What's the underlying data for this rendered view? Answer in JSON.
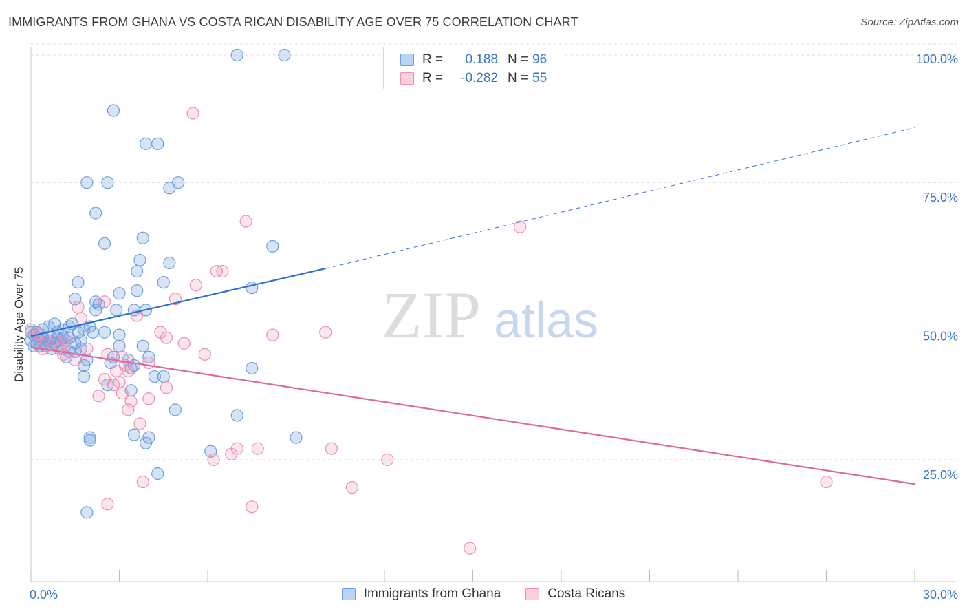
{
  "title": "IMMIGRANTS FROM GHANA VS COSTA RICAN DISABILITY AGE OVER 75 CORRELATION CHART",
  "source": "Source: ZipAtlas.com",
  "watermark": {
    "zip": "ZIP",
    "atlas": "atlas"
  },
  "legend": {
    "r_label": "R =",
    "n_label": "N =",
    "rows": [
      {
        "r": "0.188",
        "n": "96",
        "color": "#6c9fe0"
      },
      {
        "r": "-0.282",
        "n": "55",
        "color": "#f08cb0"
      }
    ]
  },
  "bottom_legend": [
    "Immigrants from Ghana",
    "Costa Ricans"
  ],
  "chart_data": {
    "type": "scatter",
    "xlabel": "",
    "ylabel": "Disability Age Over 75",
    "xlim": [
      0,
      30
    ],
    "ylim": [
      0,
      100
    ],
    "x_tick_labels": [
      "0.0%",
      "30.0%"
    ],
    "y_tick_labels": [
      {
        "value": 100,
        "label": "100.0%"
      },
      {
        "value": 75,
        "label": "75.0%"
      },
      {
        "value": 50,
        "label": "50.0%"
      },
      {
        "value": 25,
        "label": "25.0%"
      }
    ],
    "grid": true,
    "series": [
      {
        "name": "Immigrants from Ghana",
        "color": "#6c9fe0",
        "trend": {
          "x0": 0,
          "y0": 47.3,
          "x1": 10,
          "y1": 59.5,
          "x_dash_end": 30,
          "y_dash_end": 84.9
        },
        "points": [
          [
            7.0,
            98.0
          ],
          [
            8.6,
            98.0
          ],
          [
            2.8,
            88.0
          ],
          [
            3.9,
            82.0
          ],
          [
            4.3,
            82.0
          ],
          [
            1.9,
            75.0
          ],
          [
            2.6,
            75.0
          ],
          [
            5.0,
            75.0
          ],
          [
            4.7,
            74.0
          ],
          [
            2.2,
            69.5
          ],
          [
            2.5,
            64.0
          ],
          [
            3.8,
            65.0
          ],
          [
            8.2,
            63.5
          ],
          [
            3.7,
            61.0
          ],
          [
            4.7,
            60.5
          ],
          [
            3.6,
            59.0
          ],
          [
            1.6,
            57.0
          ],
          [
            4.5,
            57.0
          ],
          [
            7.5,
            56.0
          ],
          [
            3.6,
            55.5
          ],
          [
            3.0,
            55.0
          ],
          [
            2.2,
            53.5
          ],
          [
            1.5,
            54.0
          ],
          [
            2.3,
            53.0
          ],
          [
            2.2,
            52.0
          ],
          [
            3.5,
            52.0
          ],
          [
            2.9,
            52.0
          ],
          [
            3.9,
            52.0
          ],
          [
            2.0,
            49.0
          ],
          [
            0.0,
            48.0
          ],
          [
            0.1,
            47.5
          ],
          [
            0.2,
            48.0
          ],
          [
            0.4,
            48.5
          ],
          [
            0.6,
            49.0
          ],
          [
            0.8,
            49.5
          ],
          [
            0.9,
            48.0
          ],
          [
            1.1,
            48.5
          ],
          [
            1.3,
            49.0
          ],
          [
            1.4,
            49.5
          ],
          [
            1.6,
            48.0
          ],
          [
            1.8,
            48.5
          ],
          [
            2.1,
            48.0
          ],
          [
            2.5,
            48.0
          ],
          [
            3.0,
            47.5
          ],
          [
            0.0,
            46.5
          ],
          [
            0.2,
            46.0
          ],
          [
            0.3,
            46.5
          ],
          [
            0.4,
            47.0
          ],
          [
            0.5,
            46.0
          ],
          [
            0.6,
            46.5
          ],
          [
            0.7,
            47.0
          ],
          [
            0.8,
            46.0
          ],
          [
            0.9,
            47.0
          ],
          [
            1.0,
            46.5
          ],
          [
            1.1,
            47.0
          ],
          [
            1.2,
            46.5
          ],
          [
            1.3,
            47.0
          ],
          [
            1.5,
            46.0
          ],
          [
            1.7,
            46.5
          ],
          [
            0.1,
            45.5
          ],
          [
            0.3,
            45.5
          ],
          [
            0.5,
            45.5
          ],
          [
            0.7,
            45.0
          ],
          [
            0.9,
            45.5
          ],
          [
            1.1,
            45.0
          ],
          [
            1.3,
            44.5
          ],
          [
            1.5,
            44.5
          ],
          [
            1.7,
            45.0
          ],
          [
            3.0,
            45.5
          ],
          [
            3.8,
            45.5
          ],
          [
            1.2,
            43.5
          ],
          [
            1.9,
            43.0
          ],
          [
            2.8,
            43.5
          ],
          [
            3.3,
            43.0
          ],
          [
            4.0,
            43.5
          ],
          [
            1.8,
            42.0
          ],
          [
            2.7,
            42.5
          ],
          [
            3.5,
            42.0
          ],
          [
            3.4,
            41.5
          ],
          [
            7.5,
            41.5
          ],
          [
            1.8,
            40.0
          ],
          [
            4.2,
            40.0
          ],
          [
            4.5,
            40.0
          ],
          [
            2.6,
            38.5
          ],
          [
            3.4,
            37.5
          ],
          [
            4.9,
            34.0
          ],
          [
            7.0,
            33.0
          ],
          [
            2.0,
            29.0
          ],
          [
            2.0,
            28.5
          ],
          [
            3.5,
            29.5
          ],
          [
            4.0,
            29.0
          ],
          [
            3.9,
            28.0
          ],
          [
            9.0,
            29.0
          ],
          [
            6.1,
            26.5
          ],
          [
            4.3,
            22.5
          ],
          [
            1.9,
            15.5
          ]
        ]
      },
      {
        "name": "Costa Ricans",
        "color": "#f08cb0",
        "trend": {
          "x0": 0,
          "y0": 45.3,
          "x1": 30,
          "y1": 20.6
        },
        "points": [
          [
            5.5,
            87.5
          ],
          [
            7.3,
            68.0
          ],
          [
            16.6,
            67.0
          ],
          [
            6.3,
            59.0
          ],
          [
            6.5,
            59.0
          ],
          [
            5.6,
            56.5
          ],
          [
            4.9,
            54.0
          ],
          [
            2.5,
            53.5
          ],
          [
            1.6,
            52.5
          ],
          [
            3.6,
            51.0
          ],
          [
            1.7,
            50.5
          ],
          [
            4.4,
            48.0
          ],
          [
            10.0,
            48.0
          ],
          [
            8.2,
            47.5
          ],
          [
            4.6,
            47.0
          ],
          [
            5.2,
            46.0
          ],
          [
            0.3,
            47.5
          ],
          [
            0.8,
            46.5
          ],
          [
            1.2,
            46.5
          ],
          [
            0.4,
            45.0
          ],
          [
            1.0,
            45.0
          ],
          [
            1.9,
            45.0
          ],
          [
            1.1,
            44.0
          ],
          [
            2.6,
            44.0
          ],
          [
            5.9,
            44.0
          ],
          [
            1.5,
            43.0
          ],
          [
            3.1,
            43.5
          ],
          [
            4.0,
            42.5
          ],
          [
            3.2,
            42.0
          ],
          [
            3.3,
            41.0
          ],
          [
            2.9,
            41.0
          ],
          [
            2.5,
            39.5
          ],
          [
            3.0,
            39.0
          ],
          [
            2.8,
            38.5
          ],
          [
            4.6,
            38.0
          ],
          [
            3.1,
            37.0
          ],
          [
            2.3,
            36.5
          ],
          [
            4.0,
            36.0
          ],
          [
            3.4,
            35.5
          ],
          [
            3.3,
            34.0
          ],
          [
            3.7,
            31.5
          ],
          [
            7.7,
            27.0
          ],
          [
            10.2,
            27.0
          ],
          [
            7.0,
            27.0
          ],
          [
            6.8,
            26.0
          ],
          [
            6.2,
            25.0
          ],
          [
            12.1,
            25.0
          ],
          [
            3.8,
            21.0
          ],
          [
            10.9,
            20.0
          ],
          [
            27.0,
            21.0
          ],
          [
            2.6,
            17.0
          ],
          [
            7.5,
            16.5
          ],
          [
            14.9,
            9.0
          ],
          [
            0.0,
            48.5
          ],
          [
            0.2,
            47.0
          ]
        ]
      }
    ]
  }
}
